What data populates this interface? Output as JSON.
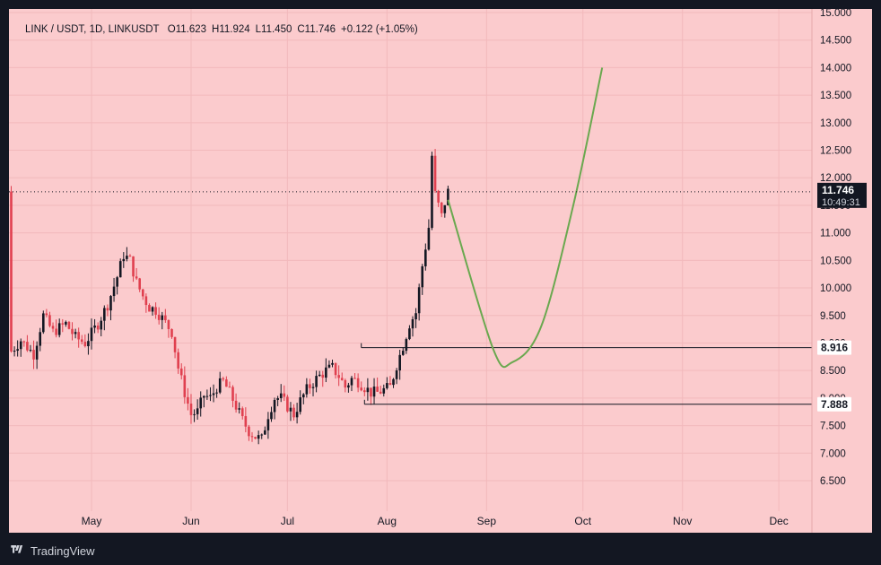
{
  "header": {
    "symbol": "LINK / USDT, 1D, LINKUSDT",
    "open": "O11.623",
    "high": "H11.924",
    "low": "L11.450",
    "close": "C11.746",
    "change": "+0.122 (+1.05%)"
  },
  "footer": {
    "brand": "TradingView"
  },
  "price_badge": {
    "price": "11.746",
    "countdown": "10:49:31"
  },
  "colors": {
    "background": "#fbcbcd",
    "frame": "#131722",
    "up": "#131722",
    "down": "#e0404f",
    "projection": "#6aa84f",
    "level": "#131722"
  },
  "chart_data": {
    "type": "candlestick",
    "x_axis": {
      "labels": [
        "May",
        "Jun",
        "Jul",
        "Aug",
        "Sep",
        "Oct",
        "Nov",
        "Dec"
      ],
      "label_days": [
        0,
        31,
        61,
        92,
        123,
        153,
        184,
        214
      ]
    },
    "y_axis": {
      "min": 6.5,
      "max": 15.0,
      "ticks": [
        "6.500",
        "7.000",
        "7.500",
        "8.000",
        "8.500",
        "9.000",
        "9.500",
        "10.000",
        "10.500",
        "11.000",
        "11.500",
        "12.000",
        "12.500",
        "13.000",
        "13.500",
        "14.000",
        "14.500",
        "15.000"
      ]
    },
    "series_note": "daily candles approx. mid-April to ~24 Aug; day 0 = May 1",
    "close_path": [
      [
        -25,
        8.85
      ],
      [
        -22,
        9.05
      ],
      [
        -18,
        8.8
      ],
      [
        -15,
        9.5
      ],
      [
        -12,
        9.2
      ],
      [
        -8,
        9.35
      ],
      [
        -5,
        9.1
      ],
      [
        -2,
        9.0
      ],
      [
        2,
        9.35
      ],
      [
        5,
        9.7
      ],
      [
        8,
        10.2
      ],
      [
        10,
        10.6
      ],
      [
        12,
        10.5
      ],
      [
        14,
        10.1
      ],
      [
        16,
        9.85
      ],
      [
        18,
        9.65
      ],
      [
        20,
        9.6
      ],
      [
        22,
        9.45
      ],
      [
        25,
        9.2
      ],
      [
        27,
        8.55
      ],
      [
        29,
        8.1
      ],
      [
        31,
        7.7
      ],
      [
        33,
        7.75
      ],
      [
        35,
        8.05
      ],
      [
        37,
        8.0
      ],
      [
        39,
        8.2
      ],
      [
        41,
        8.3
      ],
      [
        43,
        8.1
      ],
      [
        45,
        7.85
      ],
      [
        47,
        7.6
      ],
      [
        49,
        7.4
      ],
      [
        51,
        7.3
      ],
      [
        53,
        7.25
      ],
      [
        55,
        7.7
      ],
      [
        57,
        8.0
      ],
      [
        59,
        8.0
      ],
      [
        61,
        7.85
      ],
      [
        63,
        7.7
      ],
      [
        65,
        7.95
      ],
      [
        67,
        8.15
      ],
      [
        70,
        8.35
      ],
      [
        73,
        8.5
      ],
      [
        75,
        8.55
      ],
      [
        77,
        8.4
      ],
      [
        79,
        8.2
      ],
      [
        81,
        8.35
      ],
      [
        83,
        8.3
      ],
      [
        85,
        8.2
      ],
      [
        87,
        8.1
      ],
      [
        89,
        8.1
      ],
      [
        91,
        8.15
      ],
      [
        93,
        8.2
      ],
      [
        95,
        8.6
      ],
      [
        97,
        8.95
      ],
      [
        99,
        9.35
      ],
      [
        101,
        9.55
      ],
      [
        103,
        10.4
      ],
      [
        105,
        11.1
      ],
      [
        106,
        12.4
      ],
      [
        107,
        11.7
      ],
      [
        108,
        11.5
      ],
      [
        109,
        11.3
      ],
      [
        110,
        11.55
      ],
      [
        111,
        11.75
      ]
    ],
    "projection_curve": {
      "label": "",
      "points": [
        [
          111,
          11.6
        ],
        [
          125,
          8.9
        ],
        [
          131,
          8.65
        ],
        [
          140,
          9.3
        ],
        [
          150,
          11.5
        ],
        [
          159,
          14.0
        ]
      ]
    },
    "levels": [
      {
        "price": 8.916,
        "label": "8.916",
        "from_day": 84
      },
      {
        "price": 7.888,
        "label": "7.888",
        "from_day": 85
      }
    ],
    "last_price": 11.746,
    "grid": true
  }
}
